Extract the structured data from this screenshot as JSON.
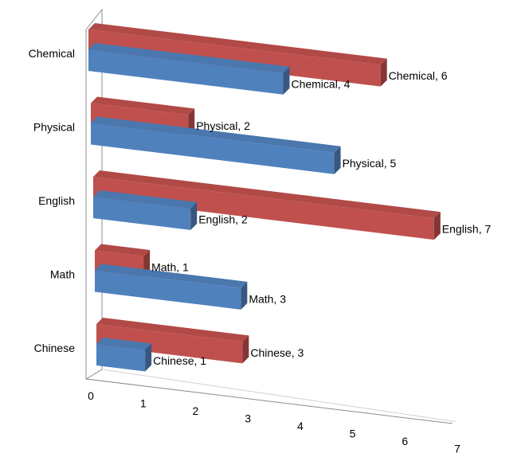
{
  "chart_data": {
    "type": "bar",
    "orientation": "horizontal",
    "style": "3d",
    "categories": [
      "Chinese",
      "Math",
      "English",
      "Physical",
      "Chemical"
    ],
    "series": [
      {
        "values": [
          1,
          3,
          2,
          5,
          4
        ],
        "color": "#4f81bd"
      },
      {
        "values": [
          3,
          1,
          7,
          2,
          6
        ],
        "color": "#c0504d"
      }
    ],
    "x_ticks": [
      "0",
      "1",
      "2",
      "3",
      "4",
      "5",
      "6",
      "7"
    ],
    "xlim": [
      0,
      7
    ],
    "data_labels": true,
    "data_label_separator": ", ",
    "legend": "none",
    "title": "",
    "xlabel": "",
    "ylabel": ""
  }
}
